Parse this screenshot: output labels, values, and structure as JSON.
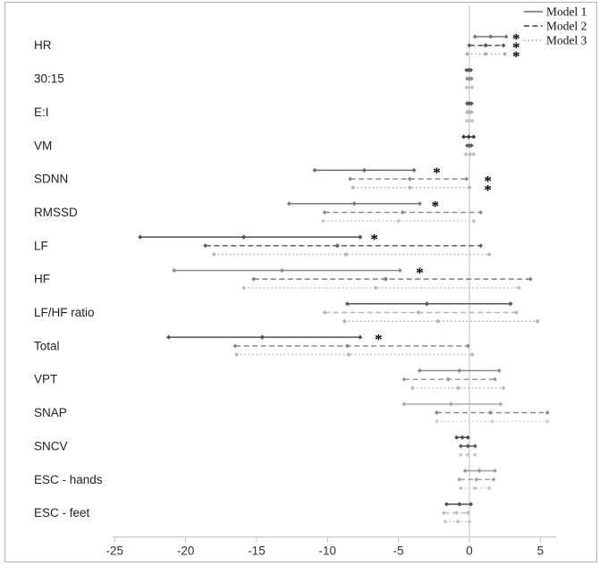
{
  "chart_data": {
    "type": "forest",
    "title": "",
    "xlabel": "",
    "ylabel": "",
    "x_ticks": [
      -25,
      -20,
      -15,
      -10,
      -5,
      0,
      5
    ],
    "x_range": [
      -25.3,
      6.2
    ],
    "zero_line": 0,
    "grid": false,
    "legend_position": "top-right",
    "legend": [
      {
        "label": "Model 1",
        "style": "solid",
        "color": "#6f6f6f"
      },
      {
        "label": "Model 2",
        "style": "dashed",
        "color": "#3f3f3f"
      },
      {
        "label": "Model 3",
        "style": "dotted",
        "color": "#9e9e9e"
      }
    ],
    "significance_marker": "*",
    "groups": [
      {
        "label": "HR",
        "models": [
          {
            "model": "Model 1",
            "low": 0.4,
            "mid": 1.5,
            "high": 2.6,
            "color": "#767676",
            "sig": 3.3
          },
          {
            "model": "Model 2",
            "low": 0.0,
            "mid": 1.15,
            "high": 2.4,
            "color": "#565656",
            "sig": 3.3
          },
          {
            "model": "Model 3",
            "low": -0.15,
            "mid": 1.15,
            "high": 2.5,
            "color": "#ababab",
            "sig": 3.3
          }
        ]
      },
      {
        "label": "30:15",
        "models": [
          {
            "model": "Model 1",
            "low": -0.2,
            "mid": -0.05,
            "high": 0.1,
            "color": "#565656",
            "sig": null
          },
          {
            "model": "Model 2",
            "low": -0.15,
            "mid": 0.0,
            "high": 0.15,
            "color": "#8c8c8c",
            "sig": null
          },
          {
            "model": "Model 3",
            "low": -0.2,
            "mid": 0.0,
            "high": 0.2,
            "color": "#c6c6c6",
            "sig": null
          }
        ]
      },
      {
        "label": "E:I",
        "models": [
          {
            "model": "Model 1",
            "low": -0.15,
            "mid": 0.0,
            "high": 0.15,
            "color": "#565656",
            "sig": null
          },
          {
            "model": "Model 2",
            "low": -0.15,
            "mid": 0.0,
            "high": 0.15,
            "color": "#b0b0b0",
            "sig": null
          },
          {
            "model": "Model 3",
            "low": -0.2,
            "mid": 0.0,
            "high": 0.2,
            "color": "#c6c6c6",
            "sig": null
          }
        ]
      },
      {
        "label": "VM",
        "models": [
          {
            "model": "Model 1",
            "low": -0.4,
            "mid": -0.05,
            "high": 0.3,
            "color": "#3a3a3a",
            "sig": null
          },
          {
            "model": "Model 2",
            "low": -0.15,
            "mid": 0.0,
            "high": 0.15,
            "color": "#5e5e5e",
            "sig": null
          },
          {
            "model": "Model 3",
            "low": -0.25,
            "mid": 0.05,
            "high": 0.3,
            "color": "#bdbdbd",
            "sig": null
          }
        ]
      },
      {
        "label": "SDNN",
        "models": [
          {
            "model": "Model 1",
            "low": -10.9,
            "mid": -7.4,
            "high": -3.9,
            "color": "#6a6a6a",
            "sig": -2.3
          },
          {
            "model": "Model 2",
            "low": -8.4,
            "mid": -4.2,
            "high": -0.2,
            "color": "#8c8c8c",
            "sig": 1.3
          },
          {
            "model": "Model 3",
            "low": -8.2,
            "mid": -4.2,
            "high": 0.0,
            "color": "#b3b3b3",
            "sig": 1.3
          }
        ]
      },
      {
        "label": "RMSSD",
        "models": [
          {
            "model": "Model 1",
            "low": -12.7,
            "mid": -8.1,
            "high": -3.5,
            "color": "#7a7a7a",
            "sig": -2.4
          },
          {
            "model": "Model 2",
            "low": -10.2,
            "mid": -4.7,
            "high": 0.8,
            "color": "#8f8f8f",
            "sig": null
          },
          {
            "model": "Model 3",
            "low": -10.3,
            "mid": -5.0,
            "high": 0.3,
            "color": "#c4c4c4",
            "sig": null
          }
        ]
      },
      {
        "label": "LF",
        "models": [
          {
            "model": "Model 1",
            "low": -23.2,
            "mid": -15.9,
            "high": -7.7,
            "color": "#4f4f4f",
            "sig": -6.7
          },
          {
            "model": "Model 2",
            "low": -18.6,
            "mid": -9.3,
            "high": 0.8,
            "color": "#5f5f5f",
            "sig": null
          },
          {
            "model": "Model 3",
            "low": -18.0,
            "mid": -8.7,
            "high": 1.4,
            "color": "#b5b5b5",
            "sig": null
          }
        ]
      },
      {
        "label": "HF",
        "models": [
          {
            "model": "Model 1",
            "low": -20.8,
            "mid": -13.2,
            "high": -4.9,
            "color": "#8a8a8a",
            "sig": -3.5
          },
          {
            "model": "Model 2",
            "low": -15.2,
            "mid": -5.9,
            "high": 4.3,
            "color": "#7d7d7d",
            "sig": null
          },
          {
            "model": "Model 3",
            "low": -15.9,
            "mid": -6.6,
            "high": 3.5,
            "color": "#bcbcbc",
            "sig": null
          }
        ]
      },
      {
        "label": "LF/HF ratio",
        "models": [
          {
            "model": "Model 1",
            "low": -8.6,
            "mid": -3.0,
            "high": 2.9,
            "color": "#555555",
            "sig": null
          },
          {
            "model": "Model 2",
            "low": -10.2,
            "mid": -3.6,
            "high": 3.3,
            "color": "#b5b5b5",
            "sig": null
          },
          {
            "model": "Model 3",
            "low": -8.8,
            "mid": -2.2,
            "high": 4.8,
            "color": "#b0b0b0",
            "sig": null
          }
        ]
      },
      {
        "label": "Total",
        "models": [
          {
            "model": "Model 1",
            "low": -21.2,
            "mid": -14.6,
            "high": -7.7,
            "color": "#4f4f4f",
            "sig": -6.4
          },
          {
            "model": "Model 2",
            "low": -16.5,
            "mid": -8.6,
            "high": -0.1,
            "color": "#8a8a8a",
            "sig": null
          },
          {
            "model": "Model 3",
            "low": -16.4,
            "mid": -8.5,
            "high": 0.2,
            "color": "#b8b8b8",
            "sig": null
          }
        ]
      },
      {
        "label": "VPT",
        "models": [
          {
            "model": "Model 1",
            "low": -3.5,
            "mid": -0.7,
            "high": 2.1,
            "color": "#8a8a8a",
            "sig": null
          },
          {
            "model": "Model 2",
            "low": -4.6,
            "mid": -1.5,
            "high": 1.8,
            "color": "#9a9a9a",
            "sig": null
          },
          {
            "model": "Model 3",
            "low": -4.0,
            "mid": -0.8,
            "high": 2.4,
            "color": "#b8b8b8",
            "sig": null
          }
        ]
      },
      {
        "label": "SNAP",
        "models": [
          {
            "model": "Model 1",
            "low": -4.6,
            "mid": -1.3,
            "high": 2.2,
            "color": "#ababab",
            "sig": null
          },
          {
            "model": "Model 2",
            "low": -2.3,
            "mid": 1.5,
            "high": 5.5,
            "color": "#8a8a8a",
            "sig": null
          },
          {
            "model": "Model 3",
            "low": -2.3,
            "mid": 1.6,
            "high": 5.5,
            "color": "#cfcfcf",
            "sig": null
          }
        ]
      },
      {
        "label": "SNCV",
        "models": [
          {
            "model": "Model 1",
            "low": -0.9,
            "mid": -0.5,
            "high": -0.1,
            "color": "#4a4a4a",
            "sig": null
          },
          {
            "model": "Model 2",
            "low": -0.6,
            "mid": -0.1,
            "high": 0.4,
            "color": "#5a5a5a",
            "sig": null
          },
          {
            "model": "Model 3",
            "low": -0.6,
            "mid": -0.1,
            "high": 0.4,
            "color": "#c9c9c9",
            "sig": null
          }
        ]
      },
      {
        "label": "ESC - hands",
        "models": [
          {
            "model": "Model 1",
            "low": -0.3,
            "mid": 0.7,
            "high": 1.8,
            "color": "#9a9a9a",
            "sig": null
          },
          {
            "model": "Model 2",
            "low": -0.7,
            "mid": 0.5,
            "high": 1.7,
            "color": "#a5a5a5",
            "sig": null
          },
          {
            "model": "Model 3",
            "low": -0.6,
            "mid": 0.4,
            "high": 1.4,
            "color": "#c4c4c4",
            "sig": null
          }
        ]
      },
      {
        "label": "ESC - feet",
        "models": [
          {
            "model": "Model 1",
            "low": -1.6,
            "mid": -0.7,
            "high": 0.1,
            "color": "#4f4f4f",
            "sig": null
          },
          {
            "model": "Model 2",
            "low": -1.8,
            "mid": -0.9,
            "high": -0.1,
            "color": "#bdbdbd",
            "sig": null
          },
          {
            "model": "Model 3",
            "low": -1.7,
            "mid": -0.8,
            "high": 0.0,
            "color": "#c4c4c4",
            "sig": null
          }
        ]
      }
    ],
    "colors": {
      "axis": "#bfbfbf",
      "border": "#b3b3b3",
      "tick_label": "#333333",
      "row_label": "#222222",
      "asterisk": "#000000"
    }
  }
}
